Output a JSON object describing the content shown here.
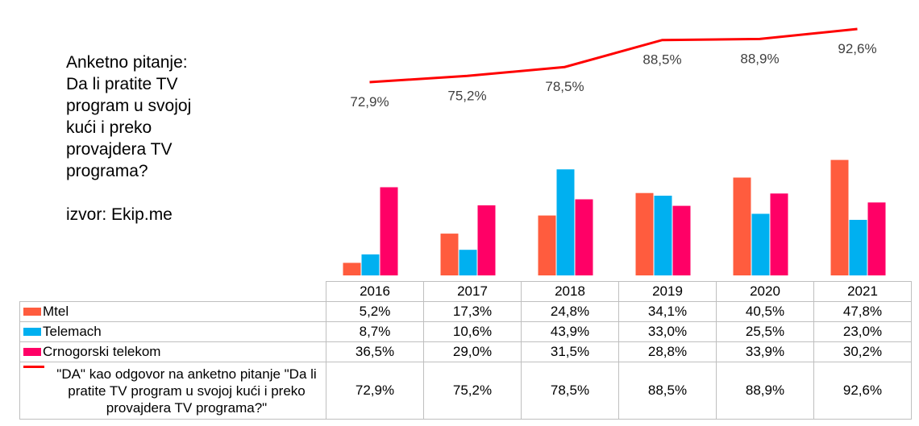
{
  "note": {
    "lines": [
      "Anketno pitanje:",
      "Da li pratite TV",
      "program u svojoj",
      "kući i preko",
      "provajdera TV",
      "programa?"
    ],
    "source": "izvor: Ekip.me"
  },
  "chart_data": {
    "type": "bar",
    "categories": [
      "2016",
      "2017",
      "2018",
      "2019",
      "2020",
      "2021"
    ],
    "series": [
      {
        "name": "Mtel",
        "color": "#ff5c3e",
        "values": [
          5.2,
          17.3,
          24.8,
          34.1,
          40.5,
          47.8
        ],
        "labels": [
          "5,2%",
          "17,3%",
          "24,8%",
          "34,1%",
          "40,5%",
          "47,8%"
        ]
      },
      {
        "name": "Telemach",
        "color": "#00b0f0",
        "values": [
          8.7,
          10.6,
          43.9,
          33.0,
          25.5,
          23.0
        ],
        "labels": [
          "8,7%",
          "10,6%",
          "43,9%",
          "33,0%",
          "25,5%",
          "23,0%"
        ]
      },
      {
        "name": "Crnogorski telekom",
        "color": "#ff0066",
        "values": [
          36.5,
          29.0,
          31.5,
          28.8,
          33.9,
          30.2
        ],
        "labels": [
          "36,5%",
          "29,0%",
          "31,5%",
          "28,8%",
          "33,9%",
          "30,2%"
        ]
      }
    ],
    "line_series": {
      "name": "\"DA\" kao odgovor na anketno pitanje \"Da li pratite TV program u svojoj kući i preko provajdera TV programa?\"",
      "color": "#ff0000",
      "values": [
        72.9,
        75.2,
        78.5,
        88.5,
        88.9,
        92.6
      ],
      "labels": [
        "72,9%",
        "75,2%",
        "78,5%",
        "88,5%",
        "88,9%",
        "92,6%"
      ]
    },
    "legend": "bottom-table",
    "grid": false
  }
}
